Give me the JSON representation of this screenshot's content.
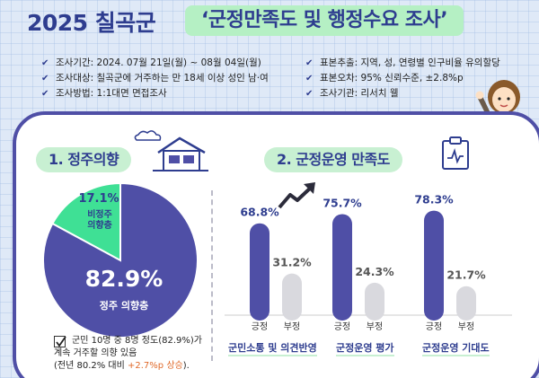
{
  "header": {
    "year": "2025 칠곡군",
    "main_title": "‘군정만족도 및 행정수요 조사’"
  },
  "info_left": [
    "조사기간: 2024. 07월 21일(월) ~ 08월 04일(월)",
    "조사대상: 칠곡군에 거주하는 만 18세 이상 성인 남·여",
    "조사방법: 1:1대면 면접조사"
  ],
  "info_right": [
    "표본추출: 지역, 성, 연령별 인구비율 유의할당",
    "표본오차: 95% 신뢰수준, ±2.8%p",
    "조사기관: 리서치 웰"
  ],
  "section1": {
    "title": "1. 정주의향",
    "note_line1": "군민 10명 중 8명 정도(82.9%)가",
    "note_line2": "계속 거주할 의향 있음",
    "note_line3_a": "(전년 80.2% 대비 ",
    "note_line3_b": "+2.7%p 상승",
    "note_line3_c": ")."
  },
  "section2": {
    "title": "2. 군정운영 만족도"
  },
  "chart_data": [
    {
      "type": "pie",
      "title": "",
      "slices": [
        {
          "label": "정주 의향층",
          "value": 82.9,
          "display": "82.9%",
          "color": "#4f4fa6"
        },
        {
          "label": "비정주 의향층",
          "value": 17.1,
          "display": "17.1%",
          "color": "#3fe095"
        }
      ]
    },
    {
      "type": "bar",
      "title": "",
      "groups": [
        {
          "name": "군민소통 및 의견반영",
          "categories": [
            "긍정",
            "부정"
          ],
          "values": [
            68.8,
            31.2
          ],
          "display": [
            "68.8%",
            "31.2%"
          ]
        },
        {
          "name": "군정운영 평가",
          "categories": [
            "긍정",
            "부정"
          ],
          "values": [
            75.7,
            24.3
          ],
          "display": [
            "75.7%",
            "24.3%"
          ]
        },
        {
          "name": "군정운영 기대도",
          "categories": [
            "긍정",
            "부정"
          ],
          "values": [
            78.3,
            21.7
          ],
          "display": [
            "78.3%",
            "21.7%"
          ]
        }
      ],
      "colors": {
        "positive": "#4f4fa6",
        "negative": "#d9d9de"
      },
      "ylim": [
        0,
        100
      ]
    }
  ]
}
